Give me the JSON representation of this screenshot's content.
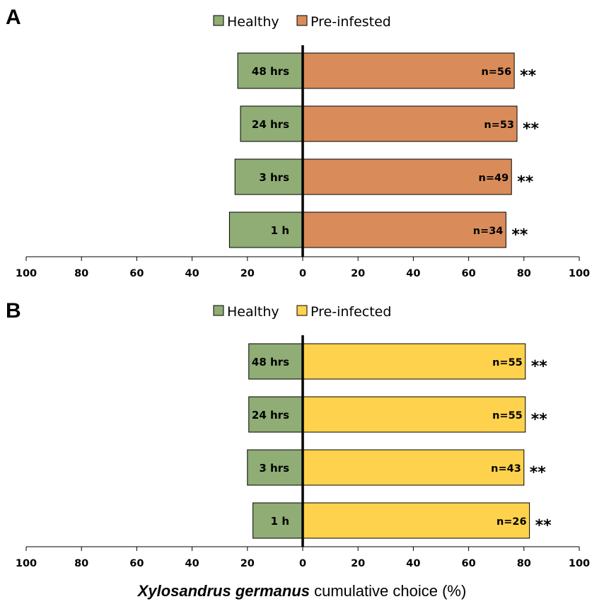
{
  "chart_data": [
    {
      "type": "bar",
      "orientation": "horizontal-diverging",
      "panel": "A",
      "legend": [
        "Healthy",
        "Pre-infested"
      ],
      "legend_position": "top-center",
      "categories": [
        "48 hrs",
        "24 hrs",
        "3 hrs",
        "1 h"
      ],
      "series": [
        {
          "name": "Healthy",
          "values": [
            23.5,
            22.5,
            24.5,
            26.5
          ],
          "color": "#8fad74"
        },
        {
          "name": "Pre-infested",
          "values": [
            76.5,
            77.5,
            75.5,
            73.5
          ],
          "color": "#d98c59"
        }
      ],
      "n_labels": [
        "n=56",
        "n=53",
        "n=49",
        "n=34"
      ],
      "significance": [
        "**",
        "**",
        "**",
        "**"
      ],
      "xlim": [
        -100,
        100
      ],
      "xticks": [
        "100",
        "80",
        "60",
        "40",
        "20",
        "0",
        "20",
        "40",
        "60",
        "80",
        "100"
      ]
    },
    {
      "type": "bar",
      "orientation": "horizontal-diverging",
      "panel": "B",
      "legend": [
        "Healthy",
        "Pre-infected"
      ],
      "legend_position": "top-center",
      "categories": [
        "48 hrs",
        "24 hrs",
        "3 hrs",
        "1 h"
      ],
      "series": [
        {
          "name": "Healthy",
          "values": [
            19.5,
            19.5,
            20,
            18
          ],
          "color": "#8fad74"
        },
        {
          "name": "Pre-infected",
          "values": [
            80.5,
            80.5,
            80,
            82
          ],
          "color": "#ffd24d"
        }
      ],
      "n_labels": [
        "n=55",
        "n=55",
        "n=43",
        "n=26"
      ],
      "significance": [
        "**",
        "**",
        "**",
        "**"
      ],
      "xlim": [
        -100,
        100
      ],
      "xticks": [
        "100",
        "80",
        "60",
        "40",
        "20",
        "0",
        "20",
        "40",
        "60",
        "80",
        "100"
      ]
    }
  ],
  "xlabel": {
    "species": "Xylosandrus germanus",
    "rest": " cumulative choice (%)"
  }
}
